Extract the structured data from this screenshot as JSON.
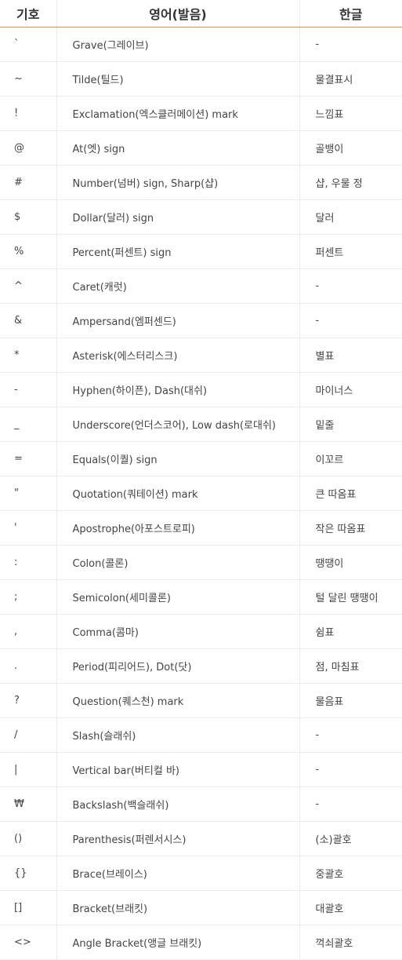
{
  "table": {
    "headers": [
      "기호",
      "영어(발음)",
      "한글"
    ],
    "rows": [
      {
        "symbol": "`",
        "english": "Grave(그레이브)",
        "korean": "-"
      },
      {
        "symbol": "~",
        "english": "Tilde(틸드)",
        "korean": "물결표시"
      },
      {
        "symbol": "!",
        "english": "Exclamation(엑스클러메이션) mark",
        "korean": "느낌표"
      },
      {
        "symbol": "@",
        "english": "At(엣) sign",
        "korean": "골뱅이"
      },
      {
        "symbol": "#",
        "english": "Number(넘버) sign, Sharp(샵)",
        "korean": "샵, 우물 정"
      },
      {
        "symbol": "$",
        "english": "Dollar(달러) sign",
        "korean": "달러"
      },
      {
        "symbol": "%",
        "english": "Percent(퍼센트) sign",
        "korean": "퍼센트"
      },
      {
        "symbol": "^",
        "english": "Caret(캐럿)",
        "korean": "-"
      },
      {
        "symbol": "&",
        "english": "Ampersand(엠퍼센드)",
        "korean": "-"
      },
      {
        "symbol": "*",
        "english": "Asterisk(에스터리스크)",
        "korean": "별표"
      },
      {
        "symbol": "-",
        "english": "Hyphen(하이픈), Dash(대쉬)",
        "korean": "마이너스"
      },
      {
        "symbol": "_",
        "english": "Underscore(언더스코어), Low dash(로대쉬)",
        "korean": "밑줄"
      },
      {
        "symbol": "=",
        "english": "Equals(이퀄) sign",
        "korean": "이꼬르"
      },
      {
        "symbol": "\"",
        "english": "Quotation(쿼테이션) mark",
        "korean": "큰 따옴표"
      },
      {
        "symbol": "'",
        "english": "Apostrophe(아포스트로피)",
        "korean": "작은 따옴표"
      },
      {
        "symbol": ":",
        "english": "Colon(콜론)",
        "korean": "땡땡이"
      },
      {
        "symbol": ";",
        "english": "Semicolon(세미콜론)",
        "korean": "털 달린 땡땡이"
      },
      {
        "symbol": ",",
        "english": "Comma(콤마)",
        "korean": "쉼표"
      },
      {
        "symbol": ".",
        "english": "Period(피리어드), Dot(닷)",
        "korean": "점, 마침표"
      },
      {
        "symbol": "?",
        "english": "Question(퀘스천) mark",
        "korean": "물음표"
      },
      {
        "symbol": "/",
        "english": "Slash(슬래쉬)",
        "korean": "-"
      },
      {
        "symbol": "|",
        "english": "Vertical bar(버티컬 바)",
        "korean": "-"
      },
      {
        "symbol": "₩",
        "english": "Backslash(백슬래쉬)",
        "korean": "-"
      },
      {
        "symbol": "()",
        "english": "Parenthesis(퍼렌서시스)",
        "korean": "(소)괄호"
      },
      {
        "symbol": "{}",
        "english": "Brace(브레이스)",
        "korean": "중괄호"
      },
      {
        "symbol": "[]",
        "english": "Bracket(브래킷)",
        "korean": "대괄호"
      },
      {
        "symbol": "<>",
        "english": "Angle Bracket(앵글 브래킷)",
        "korean": "꺽쇠괄호"
      }
    ]
  },
  "colors": {
    "header_rule": "#ee8a3c",
    "row_divider": "#ececec"
  }
}
